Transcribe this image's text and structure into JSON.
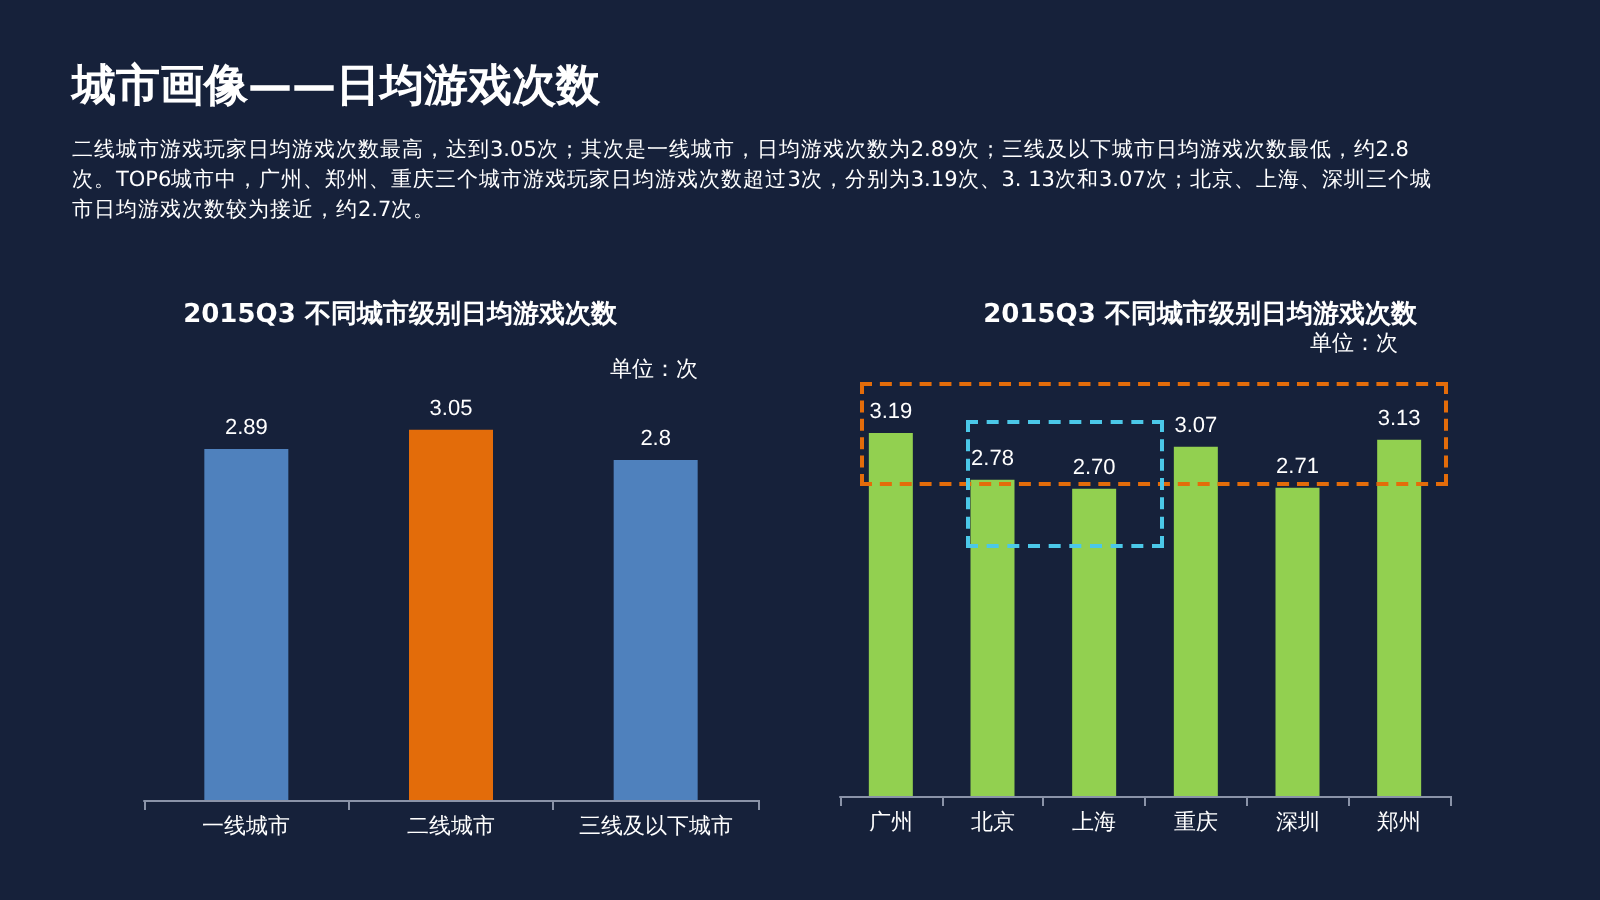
{
  "chart_data": [
    {
      "type": "bar",
      "title": "2015Q3 不同城市级别日均游戏次数",
      "annotations": [
        "城市画像——日均游戏次数",
        "二线城市游戏玩家日均游戏次数最高，达到3.05次；其次是一线城市，日均游戏次数为2.89次；三线及以下城市日均游戏次数最低，约2.8次。TOP6城市中，广州、郑州、重庆三个城市游戏玩家日均游戏次数超过3次，分别为3.19次、3. 13次和3.07次；北京、上海、深圳三个城市日均游戏次数较为接近，约2.7次。",
        "单位：次"
      ],
      "categories": [
        "一线城市",
        "二线城市",
        "三线及以下城市"
      ],
      "values": [
        2.89,
        3.05,
        2.8
      ],
      "colors": [
        "#4f81bd",
        "#e36c0a",
        "#4f81bd"
      ],
      "tick_labels": "x",
      "data_labels": true
    },
    {
      "type": "bar",
      "title": "2015Q3 不同城市级别日均游戏次数",
      "annotations": [
        "单位：次"
      ],
      "categories": [
        "广州",
        "北京",
        "上海",
        "重庆",
        "深圳",
        "郑州"
      ],
      "values": [
        3.19,
        2.78,
        2.7,
        3.07,
        2.71,
        3.13
      ],
      "color": "#92d050",
      "value_labels": [
        "3.19",
        "2.78",
        "2.70",
        "3.07",
        "2.71",
        "3.13"
      ],
      "tick_labels": "x"
    }
  ]
}
